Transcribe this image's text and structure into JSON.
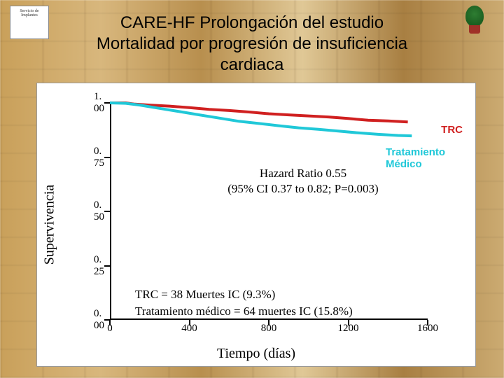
{
  "title_line1": "CARE-HF Prolongación del estudio",
  "title_line2": "Mortalidad por progresión de insuficiencia",
  "title_line3": "cardiaca",
  "logo_left_text": "Servicio de Implantes",
  "chart": {
    "type": "line",
    "xlim": [
      0,
      1600
    ],
    "ylim": [
      0,
      1.0
    ],
    "xticks": [
      0,
      400,
      800,
      1200,
      1600
    ],
    "yticks": [
      0.0,
      0.25,
      0.5,
      0.75,
      1.0
    ],
    "ytick_labels": [
      "0. 00",
      "0. 25",
      "0. 50",
      "0. 75",
      "1. 00"
    ],
    "xtick_labels": [
      "0",
      "400",
      "800",
      "1200",
      "1600"
    ],
    "x_title": "Tiempo (días)",
    "y_title": "Supervivencia",
    "background_color": "#ffffff",
    "axis_color": "#000000",
    "tick_fontsize": 15,
    "axis_title_fontsize": 20,
    "series": [
      {
        "name": "TRC",
        "color": "#d02020",
        "width": 4,
        "points": [
          [
            0,
            1.0
          ],
          [
            80,
            1.0
          ],
          [
            120,
            0.995
          ],
          [
            200,
            0.99
          ],
          [
            300,
            0.985
          ],
          [
            400,
            0.978
          ],
          [
            500,
            0.97
          ],
          [
            600,
            0.965
          ],
          [
            700,
            0.958
          ],
          [
            800,
            0.95
          ],
          [
            900,
            0.945
          ],
          [
            1000,
            0.94
          ],
          [
            1100,
            0.935
          ],
          [
            1200,
            0.928
          ],
          [
            1300,
            0.92
          ],
          [
            1400,
            0.917
          ],
          [
            1500,
            0.912
          ]
        ]
      },
      {
        "name": "Tratamiento Médico",
        "color": "#20c8d8",
        "width": 4,
        "points": [
          [
            0,
            1.0
          ],
          [
            80,
            0.998
          ],
          [
            150,
            0.99
          ],
          [
            250,
            0.975
          ],
          [
            350,
            0.96
          ],
          [
            450,
            0.945
          ],
          [
            550,
            0.93
          ],
          [
            650,
            0.915
          ],
          [
            750,
            0.905
          ],
          [
            850,
            0.895
          ],
          [
            950,
            0.885
          ],
          [
            1050,
            0.878
          ],
          [
            1150,
            0.87
          ],
          [
            1250,
            0.862
          ],
          [
            1350,
            0.855
          ],
          [
            1450,
            0.85
          ],
          [
            1520,
            0.848
          ]
        ]
      }
    ],
    "legend": {
      "trc": {
        "label": "TRC",
        "color": "#d02020"
      },
      "med": {
        "label": "Tratamiento Médico",
        "color": "#20c8d8"
      }
    }
  },
  "hazard": {
    "line1": "Hazard Ratio 0.55",
    "line2": "(95% CI 0.37 to 0.82; P=0.003)"
  },
  "deaths": {
    "line1": "TRC = 38 Muertes IC (9.3%)",
    "line2": "Tratamiento médico = 64 muertes IC (15.8%)"
  }
}
